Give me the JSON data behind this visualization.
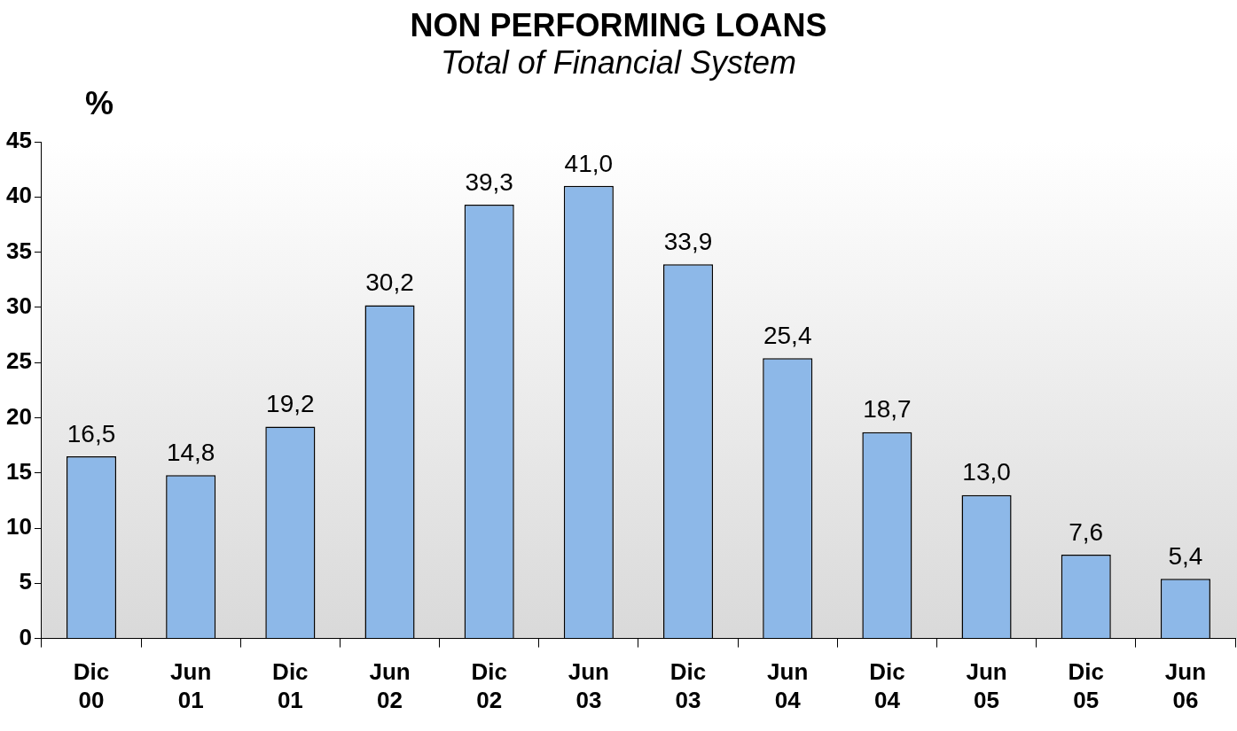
{
  "chart_data": {
    "type": "bar",
    "title": "NON PERFORMING LOANS",
    "subtitle": "Total of Financial System",
    "ylabel": "%",
    "categories": [
      "Dic 00",
      "Jun 01",
      "Dic 01",
      "Jun 02",
      "Dic 02",
      "Jun 03",
      "Dic 03",
      "Jun 04",
      "Dic 04",
      "Jun 05",
      "Dic 05",
      "Jun 06"
    ],
    "values": [
      16.5,
      14.8,
      19.2,
      30.2,
      39.3,
      41.0,
      33.9,
      25.4,
      18.7,
      13.0,
      7.6,
      5.4
    ],
    "value_labels": [
      "16,5",
      "14,8",
      "19,2",
      "30,2",
      "39,3",
      "41,0",
      "33,9",
      "25,4",
      "18,7",
      "13,0",
      "7,6",
      "5,4"
    ],
    "color": "#8db8e8",
    "ylim": [
      0,
      45
    ],
    "yticks": [
      0,
      5,
      10,
      15,
      20,
      25,
      30,
      35,
      40,
      45
    ],
    "grid": false,
    "legend": false
  }
}
